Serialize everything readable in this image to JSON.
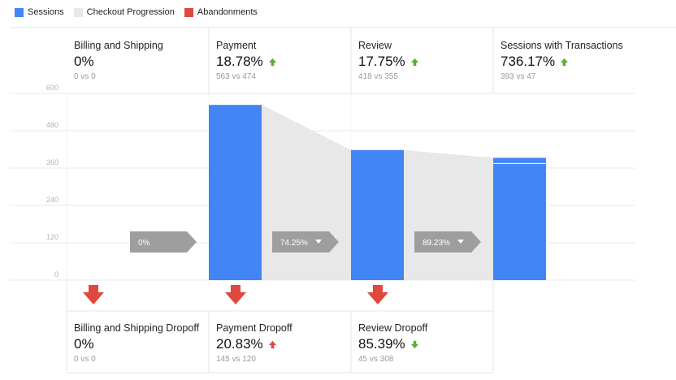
{
  "legend": [
    {
      "label": "Sessions",
      "color": "#4285f4"
    },
    {
      "label": "Checkout Progression",
      "color": "#e8e8e8"
    },
    {
      "label": "Abandonments",
      "color": "#e0483e"
    }
  ],
  "stages": [
    {
      "title": "Billing and Shipping",
      "value": "0%",
      "compare": "0 vs 0",
      "trend": "none"
    },
    {
      "title": "Payment",
      "value": "18.78%",
      "compare": "563 vs 474",
      "trend": "up"
    },
    {
      "title": "Review",
      "value": "17.75%",
      "compare": "418 vs 355",
      "trend": "up"
    },
    {
      "title": "Sessions with Transactions",
      "value": "736.17%",
      "compare": "393 vs 47",
      "trend": "up"
    }
  ],
  "dropoffs": [
    {
      "title": "Billing and Shipping Dropoff",
      "value": "0%",
      "compare": "0 vs 0",
      "trend": "none"
    },
    {
      "title": "Payment Dropoff",
      "value": "20.83%",
      "compare": "145 vs 120",
      "trend": "up-bad"
    },
    {
      "title": "Review Dropoff",
      "value": "85.39%",
      "compare": "45 vs 308",
      "trend": "down-good"
    }
  ],
  "progress_labels": [
    "0%",
    "74.25%",
    "89.23%"
  ],
  "colors": {
    "sessions": "#4285f4",
    "progression": "#e8e8e8",
    "abandon": "#e0483e",
    "up": "#55b135",
    "down": "#55b135",
    "bad": "#e0483e",
    "pill": "#9e9e9e"
  },
  "chart_data": {
    "type": "bar",
    "categories": [
      "Billing and Shipping",
      "Payment",
      "Review",
      "Sessions with Transactions"
    ],
    "series": [
      {
        "name": "Sessions",
        "values": [
          0,
          563,
          418,
          393
        ]
      }
    ],
    "y_tick_labels": [
      "0",
      "120",
      "240",
      "360",
      "480",
      "600"
    ],
    "ylim": [
      0,
      600
    ],
    "grid": true,
    "legend_position": "top-left"
  }
}
